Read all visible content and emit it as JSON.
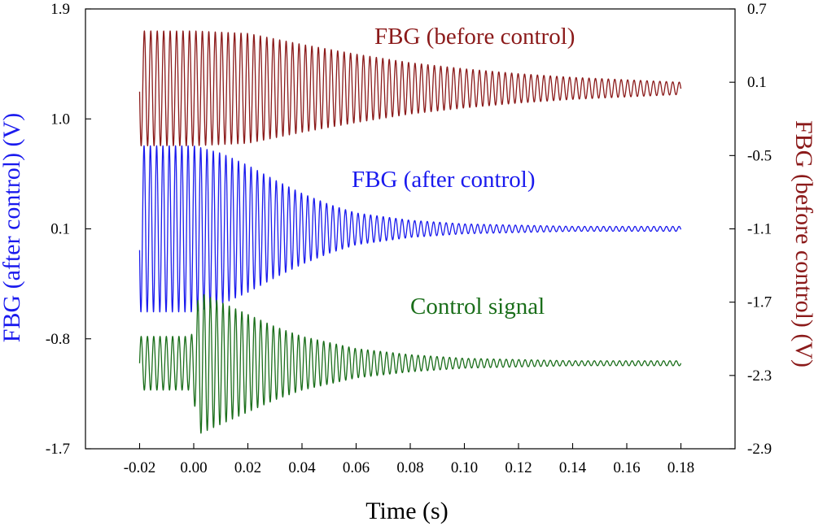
{
  "chart_data": {
    "type": "line",
    "xlabel": "Time (s)",
    "ylabel_left": "FBG (after control) (V)",
    "ylabel_right": "FBG (before control) (V)",
    "xlim": [
      -0.04,
      0.2
    ],
    "x_ticks": [
      -0.02,
      0.0,
      0.02,
      0.04,
      0.06,
      0.08,
      0.1,
      0.12,
      0.14,
      0.16,
      0.18
    ],
    "x_tick_labels": [
      "-0.02",
      "0.00",
      "0.02",
      "0.04",
      "0.06",
      "0.08",
      "0.10",
      "0.12",
      "0.14",
      "0.16",
      "0.18"
    ],
    "y_left_lim": [
      -1.7,
      1.9
    ],
    "y_left_ticks": [
      1.9,
      1.0,
      0.1,
      -0.8,
      -1.7
    ],
    "y_left_tick_labels": [
      "1.9",
      "1.0",
      "0.1",
      "-0.8",
      "-1.7"
    ],
    "y_right_lim": [
      -2.9,
      0.7
    ],
    "y_right_ticks": [
      0.7,
      0.1,
      -0.5,
      -1.1,
      -1.7,
      -2.3,
      -2.9
    ],
    "y_right_tick_labels": [
      "0.7",
      "0.1",
      "-0.5",
      "-1.1",
      "-1.7",
      "-2.3",
      "-2.9"
    ],
    "series": [
      {
        "name": "FBG (before control)",
        "label": "FBG (before control)",
        "axis": "right",
        "color": "#8b1a1a",
        "center": 0.05,
        "t_start": -0.02,
        "t_end": 0.18,
        "frequency_hz": 420,
        "phase": 3.2,
        "envelope_t": [
          -0.02,
          0.0,
          0.02,
          0.04,
          0.06,
          0.08,
          0.1,
          0.12,
          0.14,
          0.16,
          0.18
        ],
        "envelope_amp": [
          0.47,
          0.47,
          0.45,
          0.36,
          0.28,
          0.21,
          0.16,
          0.12,
          0.09,
          0.07,
          0.05
        ]
      },
      {
        "name": "FBG (after control)",
        "label": "FBG (after control)",
        "axis": "left",
        "color": "#1a1aee",
        "center": 0.1,
        "t_start": -0.02,
        "t_end": 0.18,
        "frequency_hz": 430,
        "phase": 3.4,
        "envelope_t": [
          -0.02,
          0.0,
          0.01,
          0.02,
          0.03,
          0.04,
          0.05,
          0.06,
          0.08,
          0.1,
          0.12,
          0.14,
          0.18
        ],
        "envelope_amp": [
          0.68,
          0.68,
          0.62,
          0.52,
          0.4,
          0.29,
          0.2,
          0.13,
          0.07,
          0.04,
          0.03,
          0.02,
          0.02
        ]
      },
      {
        "name": "Control signal",
        "label": "Control signal",
        "axis": "left",
        "color": "#1a6e1a",
        "center": -1.0,
        "t_start": -0.02,
        "t_end": 0.18,
        "frequency_hz": 430,
        "phase": 0,
        "envelope_t": [
          -0.02,
          -0.001,
          0.0,
          0.002,
          0.01,
          0.02,
          0.03,
          0.04,
          0.06,
          0.08,
          0.1,
          0.12,
          0.14,
          0.18
        ],
        "envelope_amp": [
          0.22,
          0.22,
          0.3,
          0.58,
          0.5,
          0.4,
          0.3,
          0.22,
          0.12,
          0.07,
          0.04,
          0.03,
          0.02,
          0.02
        ]
      }
    ]
  }
}
